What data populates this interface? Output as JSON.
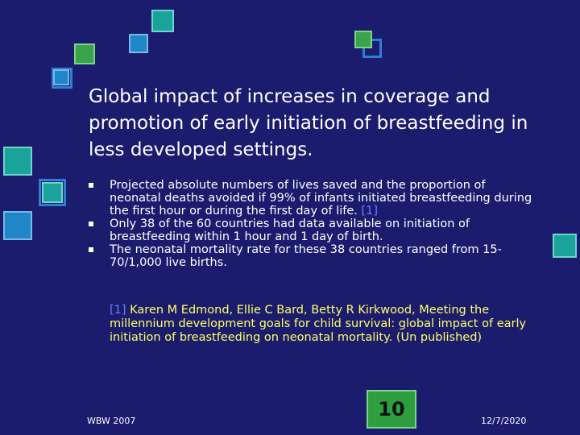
{
  "slide": {
    "title": "Global impact of increases in coverage and promotion of early initiation of breastfeeding in less developed settings.",
    "bullets": [
      {
        "text": "Projected absolute numbers of lives saved and the proportion of neonatal deaths avoided if 99% of infants initiated breastfeeding during the first hour or during the first day of life. ",
        "ref": "[1]"
      },
      {
        "text": "Only 38 of the 60 countries had data available on initiation of breastfeeding within 1 hour and 1 day of birth.",
        "ref": ""
      },
      {
        "text": "The neonatal mortality rate for these 38 countries ranged from 15-70/1,000 live births.",
        "ref": ""
      }
    ],
    "footnote": {
      "ref": "[1]",
      "text": " Karen M Edmond, Ellie C Bard, Betty R Kirkwood, Meeting the millennium development goals for child survival: global impact of early initiation of breastfeeding on neonatal mortality. (Un published)"
    },
    "footer_left": "WBW 2007",
    "page_number": "10",
    "footer_right": "12/7/2020"
  },
  "colors": {
    "background": "#1c1c6e",
    "footnote_text": "#ffff66",
    "reference_link": "#6b7cff",
    "page_number_box": "#2e9e3f"
  }
}
